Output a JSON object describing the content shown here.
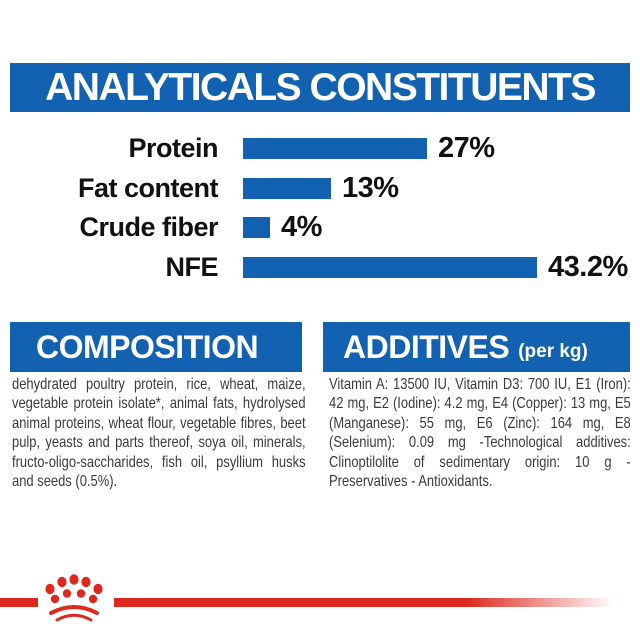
{
  "header": {
    "title": "ANALYTICALS CONSTITUENTS"
  },
  "chart_data": {
    "type": "bar",
    "orientation": "horizontal",
    "unit": "%",
    "categories": [
      "Protein",
      "Fat content",
      "Crude fiber",
      "NFE"
    ],
    "values": [
      27,
      13,
      4,
      43.2
    ],
    "value_labels": [
      "27%",
      "13%",
      "4%",
      "43.2%"
    ],
    "bar_color": "#1362b1",
    "xlim": [
      0,
      50
    ],
    "grid": false,
    "legend": false
  },
  "sections": {
    "composition": {
      "title": "COMPOSITION",
      "body": "dehydrated poultry protein, rice, wheat, maize, vegetable protein isolate*, animal fats, hydrolysed animal proteins, wheat flour, vegetable fibres, beet pulp, yeasts and parts thereof, soya oil, minerals, fructo-oligo-saccharides, fish oil, psyllium husks and seeds (0.5%)."
    },
    "additives": {
      "title": "ADDITIVES",
      "subtitle": "(per kg)",
      "body": "Vitamin A: 13500 IU, Vitamin D3: 700 IU, E1 (Iron): 42 mg, E2 (Iodine): 4.2 mg, E4 (Copper): 13 mg, E5 (Manganese): 55 mg, E6 (Zinc): 164 mg, E8 (Selenium): 0.09 mg -Technological additives: Clinoptilolite of sedimentary origin: 10 g - Preservatives - Antioxidants."
    }
  },
  "footer": {
    "brand_icon": "royal-canin-crown-icon"
  },
  "colors": {
    "accent_blue": "#1362b1",
    "brand_red": "#dd281e",
    "body_text": "#3b3b3b"
  }
}
